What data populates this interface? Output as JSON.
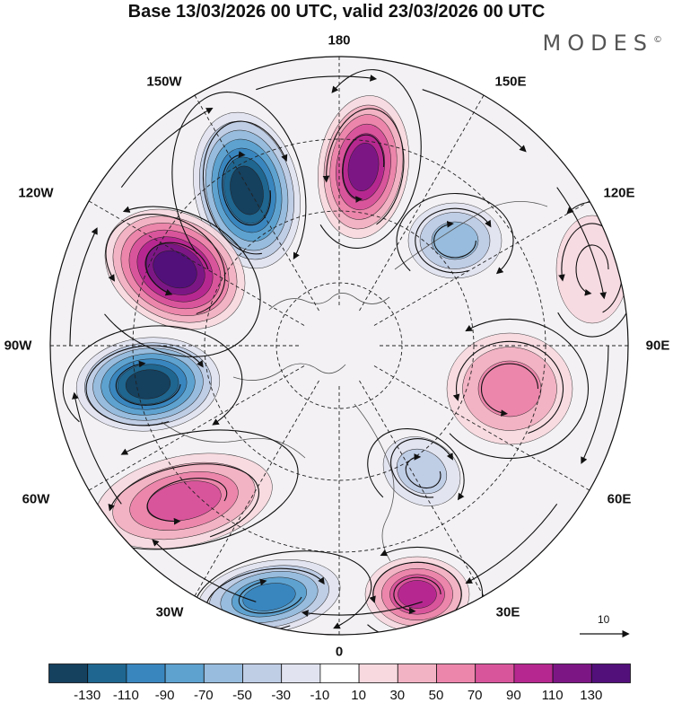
{
  "title": "Base 13/03/2026 00 UTC, valid 23/03/2026 00 UTC",
  "logo": "MODES",
  "logo_mark": "©",
  "longitude_labels": {
    "lon_180": "180",
    "lon_150w": "150W",
    "lon_150e": "150E",
    "lon_120w": "120W",
    "lon_120e": "120E",
    "lon_90w": "90W",
    "lon_90e": "90E",
    "lon_60w": "60W",
    "lon_60e": "60E",
    "lon_30w": "30W",
    "lon_30e": "30E",
    "lon_0": "0"
  },
  "reference_vector": "10",
  "colorbar": {
    "ticks": [
      "-130",
      "-110",
      "-90",
      "-70",
      "-50",
      "-30",
      "-10",
      "10",
      "30",
      "50",
      "70",
      "90",
      "110",
      "130"
    ],
    "colors": [
      "#15405e",
      "#1f6690",
      "#3986bf",
      "#5ea2d0",
      "#97bcdd",
      "#bfcde5",
      "#e1e3f0",
      "#ffffff",
      "#f8d9e0",
      "#f2b3c4",
      "#ec86ab",
      "#d9559b",
      "#b6288f",
      "#7c1685",
      "#52107a"
    ]
  },
  "anomaly_centers": [
    {
      "id": "trough-150w",
      "value": -140
    },
    {
      "id": "ridge-170e",
      "value": 120
    },
    {
      "id": "ridge-115w",
      "value": 140
    },
    {
      "id": "trough-140e",
      "value": -70
    },
    {
      "id": "trough-85w",
      "value": -140
    },
    {
      "id": "ridge-90e",
      "value": 70
    },
    {
      "id": "ridge-60w",
      "value": 90
    },
    {
      "id": "trough-45e",
      "value": -50
    },
    {
      "id": "trough-15w",
      "value": -110
    },
    {
      "id": "ridge-20e",
      "value": 110
    },
    {
      "id": "ridge-125e",
      "value": 30
    }
  ]
}
